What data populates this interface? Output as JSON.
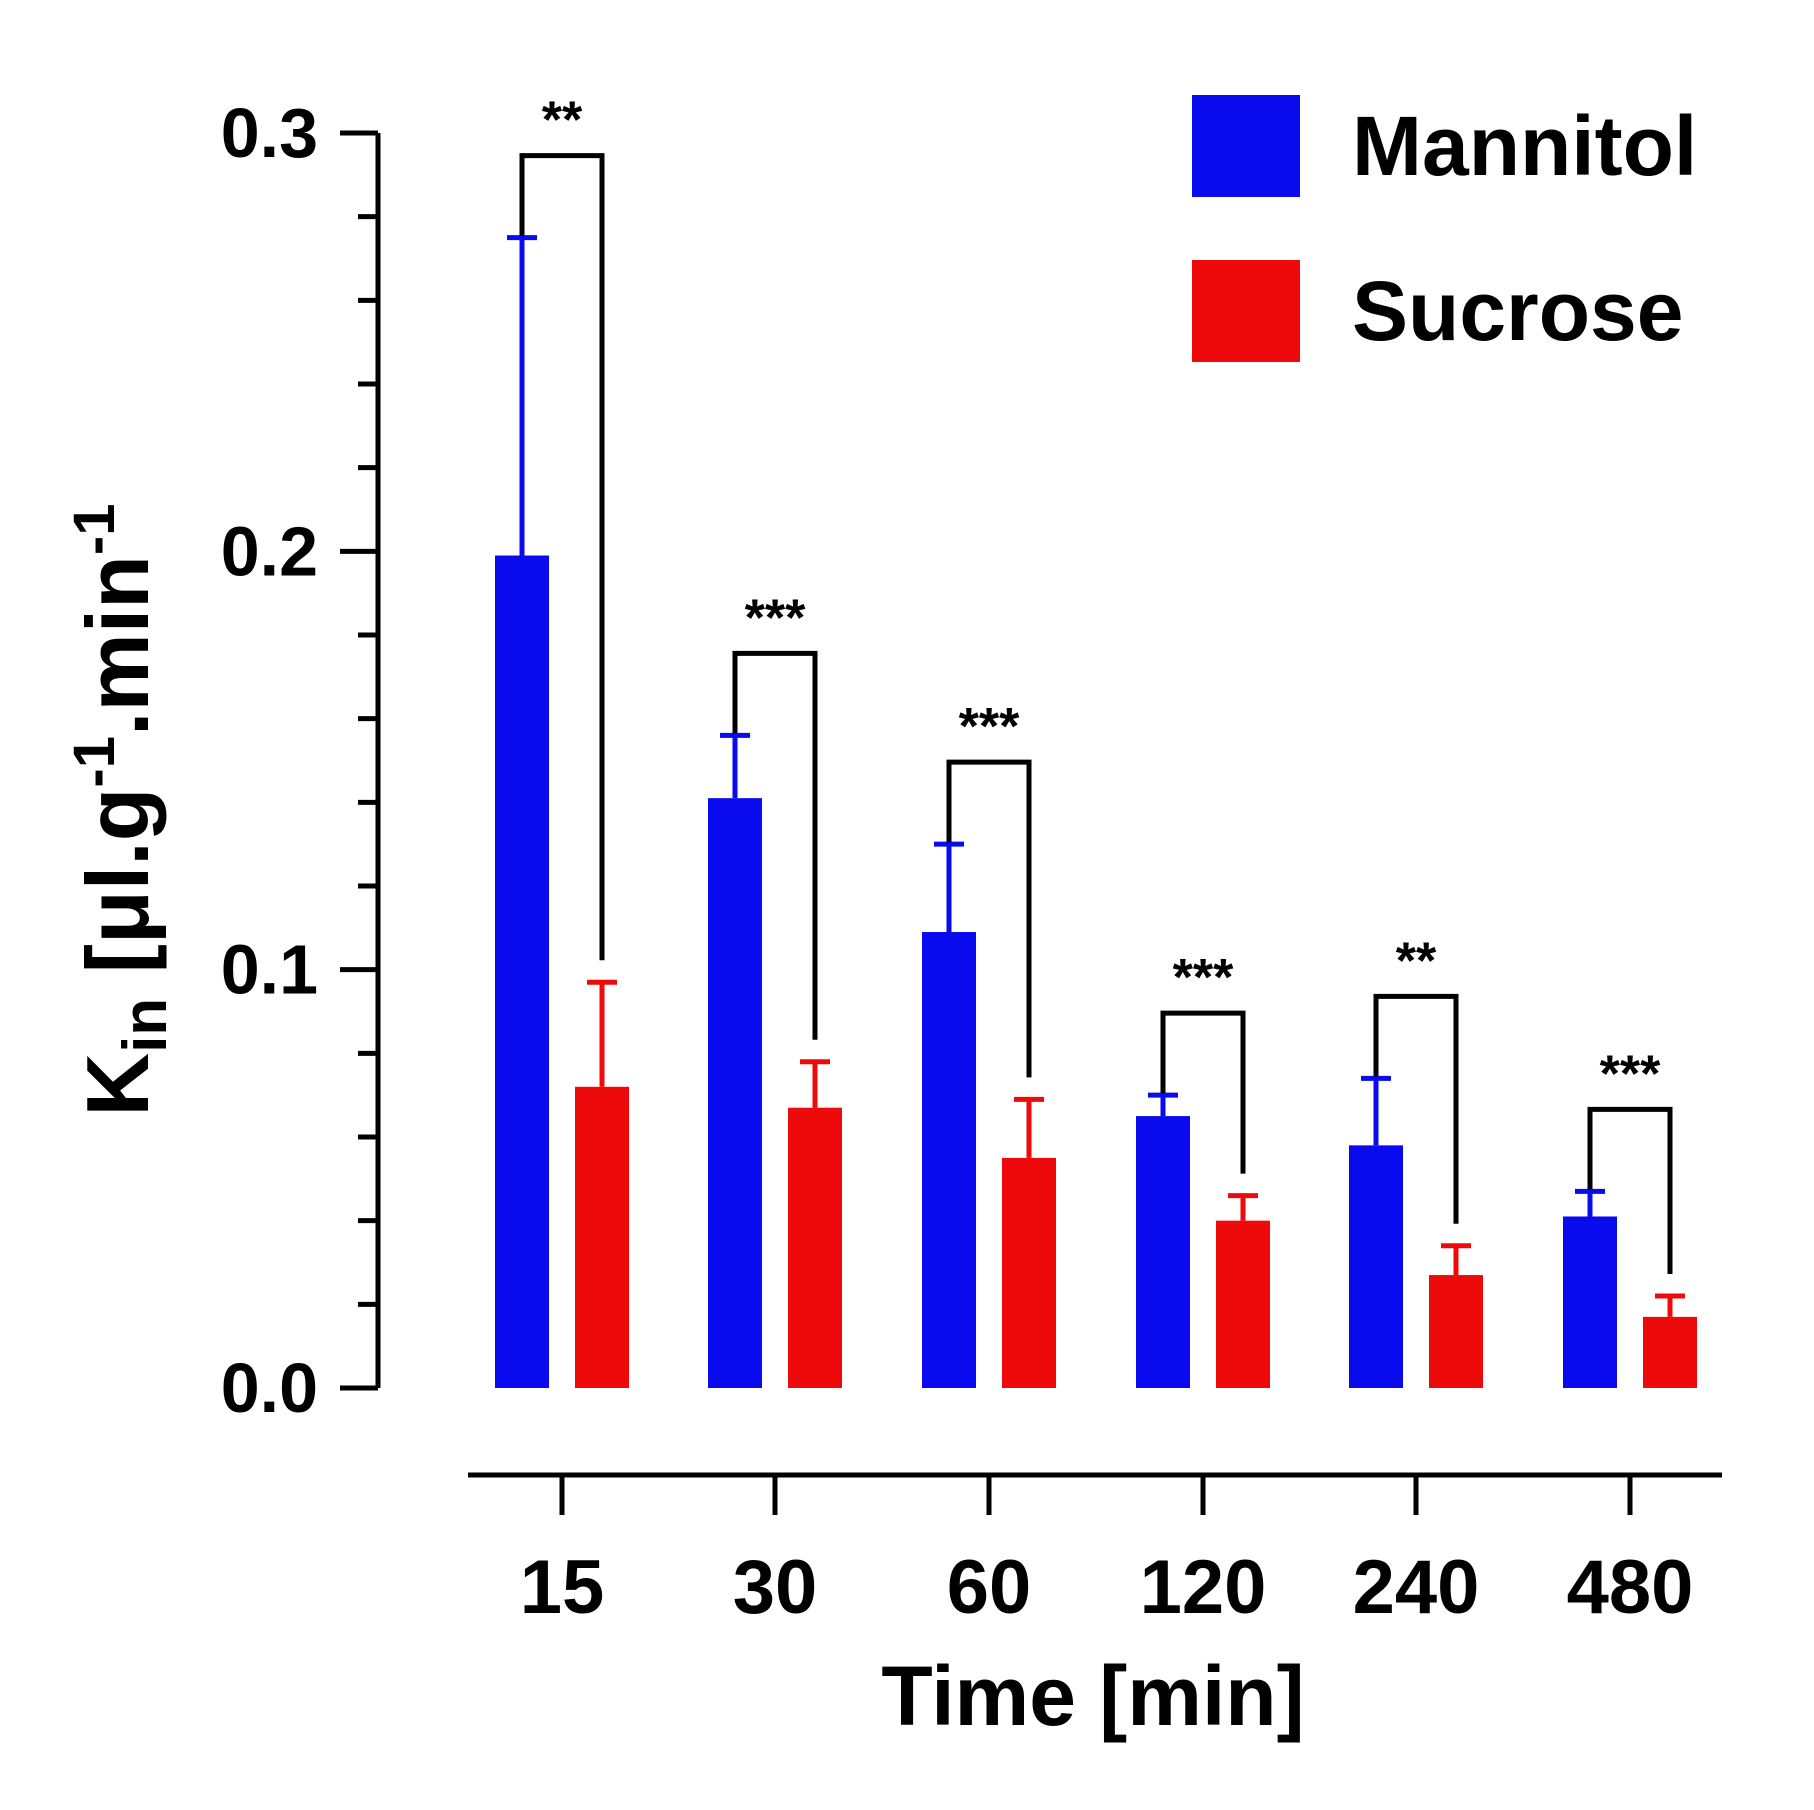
{
  "chart_data": {
    "type": "bar",
    "xlabel": "Time [min]",
    "ylabel": {
      "base": "K",
      "sub": "in",
      "unit_prefix": " [μl.g",
      "sup1": "-1",
      "unit_mid": ".min",
      "sup2": "-1"
    },
    "categories": [
      "15",
      "30",
      "60",
      "120",
      "240",
      "480"
    ],
    "ylim": [
      0.0,
      0.3
    ],
    "yticks": [
      "0.0",
      "0.1",
      "0.2",
      "0.3"
    ],
    "grid": false,
    "legend_position": "top-right",
    "series": [
      {
        "name": "Mannitol",
        "color": "#0a0aee",
        "values": [
          0.199,
          0.141,
          0.109,
          0.065,
          0.058,
          0.041
        ],
        "errors": [
          0.076,
          0.015,
          0.021,
          0.005,
          0.016,
          0.006
        ]
      },
      {
        "name": "Sucrose",
        "color": "#ee0a0a",
        "values": [
          0.072,
          0.067,
          0.055,
          0.04,
          0.027,
          0.017
        ],
        "errors": [
          0.025,
          0.011,
          0.014,
          0.006,
          0.007,
          0.005
        ]
      }
    ],
    "significance": [
      "**",
      "***",
      "***",
      "***",
      "**",
      "***"
    ]
  }
}
